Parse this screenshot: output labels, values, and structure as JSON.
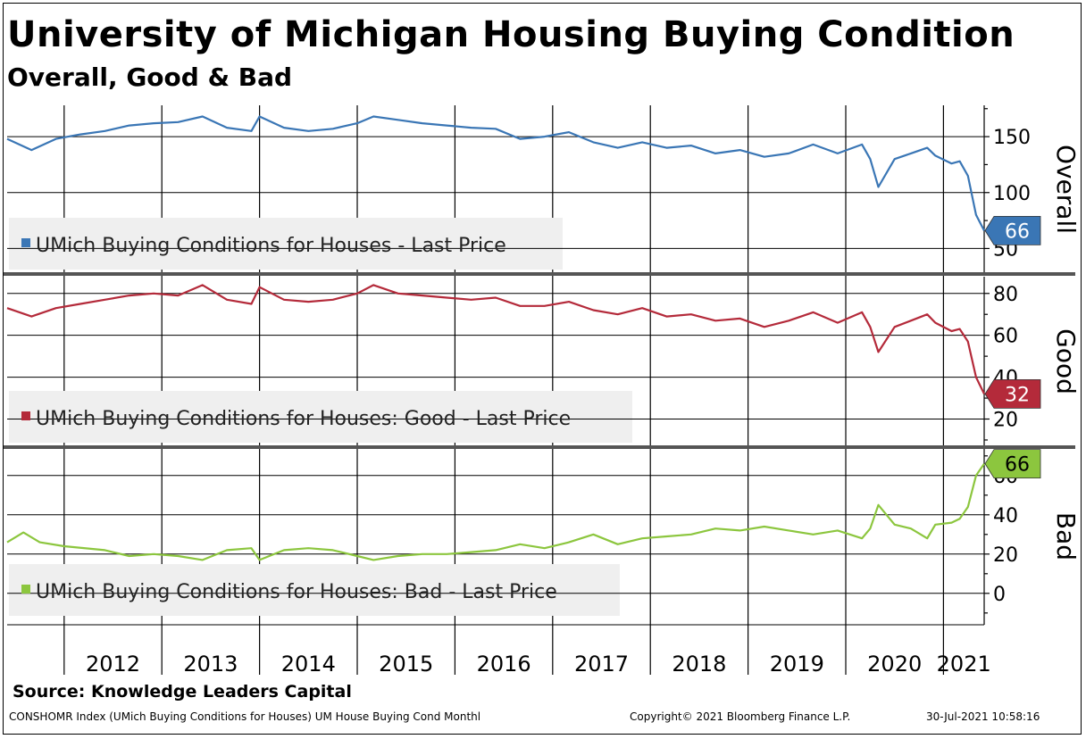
{
  "title": "University of Michigan Housing Buying Condition",
  "subtitle": "Overall, Good & Bad",
  "source": "Source: Knowledge Leaders Capital",
  "footer": {
    "ticker": "CONSHOMR Index (UMich Buying Conditions for Houses) UM House Buying Cond  Monthl",
    "copyright": "Copyright© 2021 Bloomberg Finance L.P.",
    "timestamp": "30-Jul-2021 10:58:16"
  },
  "colors": {
    "overall": "#3a76b5",
    "good": "#b42a3a",
    "bad": "#8cc63e"
  },
  "chart_data": {
    "type": "line",
    "x_tick_labels": [
      "2012",
      "2013",
      "2014",
      "2015",
      "2016",
      "2017",
      "2018",
      "2019",
      "2020",
      "2021"
    ],
    "x_range": [
      "2011-06",
      "2021-06"
    ],
    "panels": [
      {
        "name": "Overall",
        "ylabel": "Overall",
        "y_ticks": [
          "150",
          "100",
          "50"
        ],
        "ylim": [
          28,
          178
        ],
        "legend": "UMich Buying Conditions for Houses - Last Price",
        "last_value_label": "66",
        "series": {
          "name": "UMich Buying Conditions for Houses - Last Price",
          "points": [
            [
              "2011-06",
              148
            ],
            [
              "2011-09",
              138
            ],
            [
              "2011-12",
              148
            ],
            [
              "2012-03",
              152
            ],
            [
              "2012-06",
              155
            ],
            [
              "2012-09",
              160
            ],
            [
              "2012-12",
              162
            ],
            [
              "2013-03",
              163
            ],
            [
              "2013-06",
              168
            ],
            [
              "2013-09",
              158
            ],
            [
              "2013-12",
              155
            ],
            [
              "2014-01",
              168
            ],
            [
              "2014-04",
              158
            ],
            [
              "2014-07",
              155
            ],
            [
              "2014-10",
              157
            ],
            [
              "2015-01",
              162
            ],
            [
              "2015-03",
              168
            ],
            [
              "2015-06",
              165
            ],
            [
              "2015-09",
              162
            ],
            [
              "2015-12",
              160
            ],
            [
              "2016-03",
              158
            ],
            [
              "2016-06",
              157
            ],
            [
              "2016-09",
              148
            ],
            [
              "2016-12",
              150
            ],
            [
              "2017-03",
              154
            ],
            [
              "2017-06",
              145
            ],
            [
              "2017-09",
              140
            ],
            [
              "2017-12",
              145
            ],
            [
              "2018-03",
              140
            ],
            [
              "2018-06",
              142
            ],
            [
              "2018-09",
              135
            ],
            [
              "2018-12",
              138
            ],
            [
              "2019-03",
              132
            ],
            [
              "2019-06",
              135
            ],
            [
              "2019-09",
              143
            ],
            [
              "2019-12",
              135
            ],
            [
              "2020-03",
              143
            ],
            [
              "2020-04",
              130
            ],
            [
              "2020-05",
              105
            ],
            [
              "2020-07",
              130
            ],
            [
              "2020-09",
              135
            ],
            [
              "2020-11",
              140
            ],
            [
              "2020-12",
              133
            ],
            [
              "2021-02",
              126
            ],
            [
              "2021-03",
              128
            ],
            [
              "2021-04",
              115
            ],
            [
              "2021-05",
              80
            ],
            [
              "2021-06",
              66
            ]
          ]
        }
      },
      {
        "name": "Good",
        "ylabel": "Good",
        "y_ticks": [
          "80",
          "60",
          "40",
          "20"
        ],
        "ylim": [
          7,
          88
        ],
        "legend": "UMich Buying Conditions for Houses: Good - Last Price",
        "last_value_label": "32",
        "series": {
          "name": "UMich Buying Conditions for Houses: Good - Last Price",
          "points": [
            [
              "2011-06",
              73
            ],
            [
              "2011-09",
              69
            ],
            [
              "2011-12",
              73
            ],
            [
              "2012-03",
              75
            ],
            [
              "2012-06",
              77
            ],
            [
              "2012-09",
              79
            ],
            [
              "2012-12",
              80
            ],
            [
              "2013-03",
              79
            ],
            [
              "2013-06",
              84
            ],
            [
              "2013-09",
              77
            ],
            [
              "2013-12",
              75
            ],
            [
              "2014-01",
              83
            ],
            [
              "2014-04",
              77
            ],
            [
              "2014-07",
              76
            ],
            [
              "2014-10",
              77
            ],
            [
              "2015-01",
              80
            ],
            [
              "2015-03",
              84
            ],
            [
              "2015-06",
              80
            ],
            [
              "2015-09",
              79
            ],
            [
              "2015-12",
              78
            ],
            [
              "2016-03",
              77
            ],
            [
              "2016-06",
              78
            ],
            [
              "2016-09",
              74
            ],
            [
              "2016-12",
              74
            ],
            [
              "2017-03",
              76
            ],
            [
              "2017-06",
              72
            ],
            [
              "2017-09",
              70
            ],
            [
              "2017-12",
              73
            ],
            [
              "2018-03",
              69
            ],
            [
              "2018-06",
              70
            ],
            [
              "2018-09",
              67
            ],
            [
              "2018-12",
              68
            ],
            [
              "2019-03",
              64
            ],
            [
              "2019-06",
              67
            ],
            [
              "2019-09",
              71
            ],
            [
              "2019-12",
              66
            ],
            [
              "2020-03",
              71
            ],
            [
              "2020-04",
              64
            ],
            [
              "2020-05",
              52
            ],
            [
              "2020-07",
              64
            ],
            [
              "2020-09",
              67
            ],
            [
              "2020-11",
              70
            ],
            [
              "2020-12",
              66
            ],
            [
              "2021-02",
              62
            ],
            [
              "2021-03",
              63
            ],
            [
              "2021-04",
              57
            ],
            [
              "2021-05",
              40
            ],
            [
              "2021-06",
              32
            ]
          ]
        }
      },
      {
        "name": "Bad",
        "ylabel": "Bad",
        "y_ticks": [
          "60",
          "40",
          "20",
          "0"
        ],
        "ylim": [
          -16,
          74
        ],
        "legend": "UMich Buying Conditions for Houses: Bad - Last Price",
        "last_value_label": "66",
        "series": {
          "name": "UMich Buying Conditions for Houses: Bad - Last Price",
          "points": [
            [
              "2011-06",
              26
            ],
            [
              "2011-08",
              31
            ],
            [
              "2011-10",
              26
            ],
            [
              "2012-01",
              24
            ],
            [
              "2012-06",
              22
            ],
            [
              "2012-09",
              19
            ],
            [
              "2012-12",
              20
            ],
            [
              "2013-03",
              19
            ],
            [
              "2013-06",
              17
            ],
            [
              "2013-09",
              22
            ],
            [
              "2013-12",
              23
            ],
            [
              "2014-01",
              17
            ],
            [
              "2014-04",
              22
            ],
            [
              "2014-07",
              23
            ],
            [
              "2014-10",
              22
            ],
            [
              "2015-01",
              19
            ],
            [
              "2015-03",
              17
            ],
            [
              "2015-06",
              19
            ],
            [
              "2015-09",
              20
            ],
            [
              "2015-12",
              20
            ],
            [
              "2016-03",
              21
            ],
            [
              "2016-06",
              22
            ],
            [
              "2016-09",
              25
            ],
            [
              "2016-12",
              23
            ],
            [
              "2017-03",
              26
            ],
            [
              "2017-06",
              30
            ],
            [
              "2017-09",
              25
            ],
            [
              "2017-12",
              28
            ],
            [
              "2018-03",
              29
            ],
            [
              "2018-06",
              30
            ],
            [
              "2018-09",
              33
            ],
            [
              "2018-12",
              32
            ],
            [
              "2019-03",
              34
            ],
            [
              "2019-06",
              32
            ],
            [
              "2019-09",
              30
            ],
            [
              "2019-12",
              32
            ],
            [
              "2020-03",
              28
            ],
            [
              "2020-04",
              33
            ],
            [
              "2020-05",
              45
            ],
            [
              "2020-07",
              35
            ],
            [
              "2020-09",
              33
            ],
            [
              "2020-11",
              28
            ],
            [
              "2020-12",
              35
            ],
            [
              "2021-02",
              36
            ],
            [
              "2021-03",
              38
            ],
            [
              "2021-04",
              44
            ],
            [
              "2021-05",
              60
            ],
            [
              "2021-06",
              66
            ]
          ]
        }
      }
    ]
  }
}
